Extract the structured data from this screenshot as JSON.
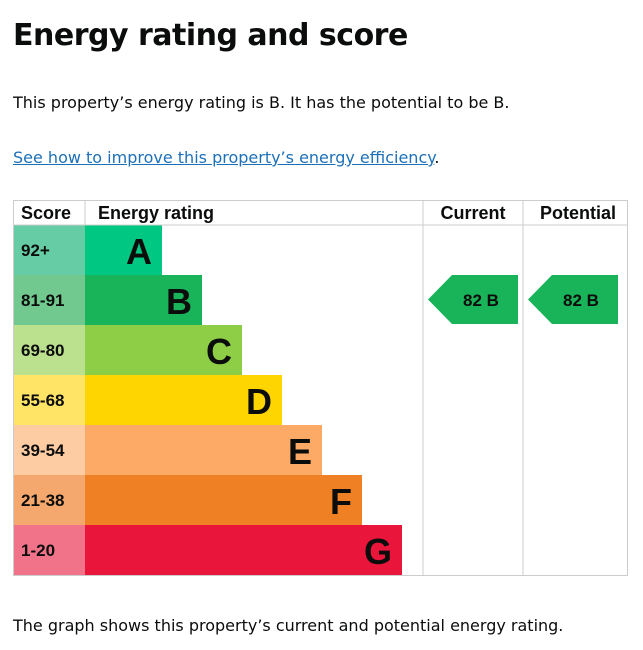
{
  "title": "Energy rating and score",
  "summary": "This property’s energy rating is B. It has the potential to be B.",
  "improve_link": "See how to improve this property’s energy efficiency",
  "improve_suffix": ".",
  "footer": "The graph shows this property’s current and potential energy rating.",
  "table": {
    "headers": {
      "score": "Score",
      "rating": "Energy rating",
      "current": "Current",
      "potential": "Potential"
    },
    "bands": [
      {
        "score": "92+",
        "letter": "A",
        "color": "#00c781",
        "score_color": "#66cca5"
      },
      {
        "score": "81-91",
        "letter": "B",
        "color": "#19b459",
        "score_color": "#72c98f"
      },
      {
        "score": "69-80",
        "letter": "C",
        "color": "#8dce46",
        "score_color": "#bbe08e"
      },
      {
        "score": "55-68",
        "letter": "D",
        "color": "#ffd500",
        "score_color": "#ffe466"
      },
      {
        "score": "39-54",
        "letter": "E",
        "color": "#fcaa65",
        "score_color": "#fdcca3"
      },
      {
        "score": "21-38",
        "letter": "F",
        "color": "#ef8023",
        "score_color": "#f5a86e"
      },
      {
        "score": "1-20",
        "letter": "G",
        "color": "#e9153b",
        "score_color": "#f0738a"
      }
    ],
    "current": {
      "label": "82  B",
      "band": "B",
      "color": "#19b459"
    },
    "potential": {
      "label": "82  B",
      "band": "B",
      "color": "#19b459"
    }
  }
}
